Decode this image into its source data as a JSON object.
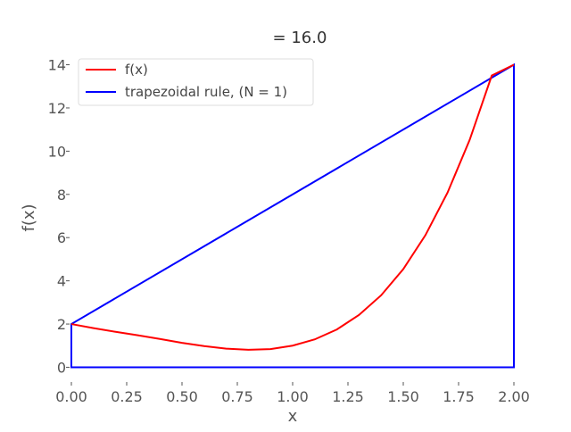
{
  "chart_data": {
    "type": "line",
    "title": "= 16.0",
    "xlabel": "x",
    "ylabel": "f(x)",
    "xlim": [
      0.0,
      2.0
    ],
    "ylim": [
      -0.6,
      14.6
    ],
    "x_ticks": [
      "0.00",
      "0.25",
      "0.50",
      "0.75",
      "1.00",
      "1.25",
      "1.50",
      "1.75",
      "2.00"
    ],
    "y_ticks": [
      "0",
      "2",
      "4",
      "6",
      "8",
      "10",
      "12",
      "14"
    ],
    "grid": false,
    "legend_position": "top-left",
    "series": [
      {
        "name": "f(x)",
        "color": "#ff0000",
        "x": [
          0.0,
          0.1,
          0.2,
          0.3,
          0.4,
          0.5,
          0.6,
          0.7,
          0.8,
          0.9,
          1.0,
          1.1,
          1.2,
          1.3,
          1.4,
          1.5,
          1.6,
          1.7,
          1.8,
          1.9,
          2.0
        ],
        "y": [
          2.0,
          1.81,
          1.64,
          1.48,
          1.31,
          1.13,
          0.98,
          0.86,
          0.81,
          0.84,
          1.0,
          1.29,
          1.75,
          2.42,
          3.33,
          4.54,
          6.11,
          8.08,
          10.52,
          13.5,
          14.0
        ]
      },
      {
        "name": "trapezoidal rule, (N = 1)",
        "color": "#0000ff",
        "x": [
          0.0,
          2.0
        ],
        "y": [
          2.0,
          14.0
        ]
      }
    ]
  }
}
